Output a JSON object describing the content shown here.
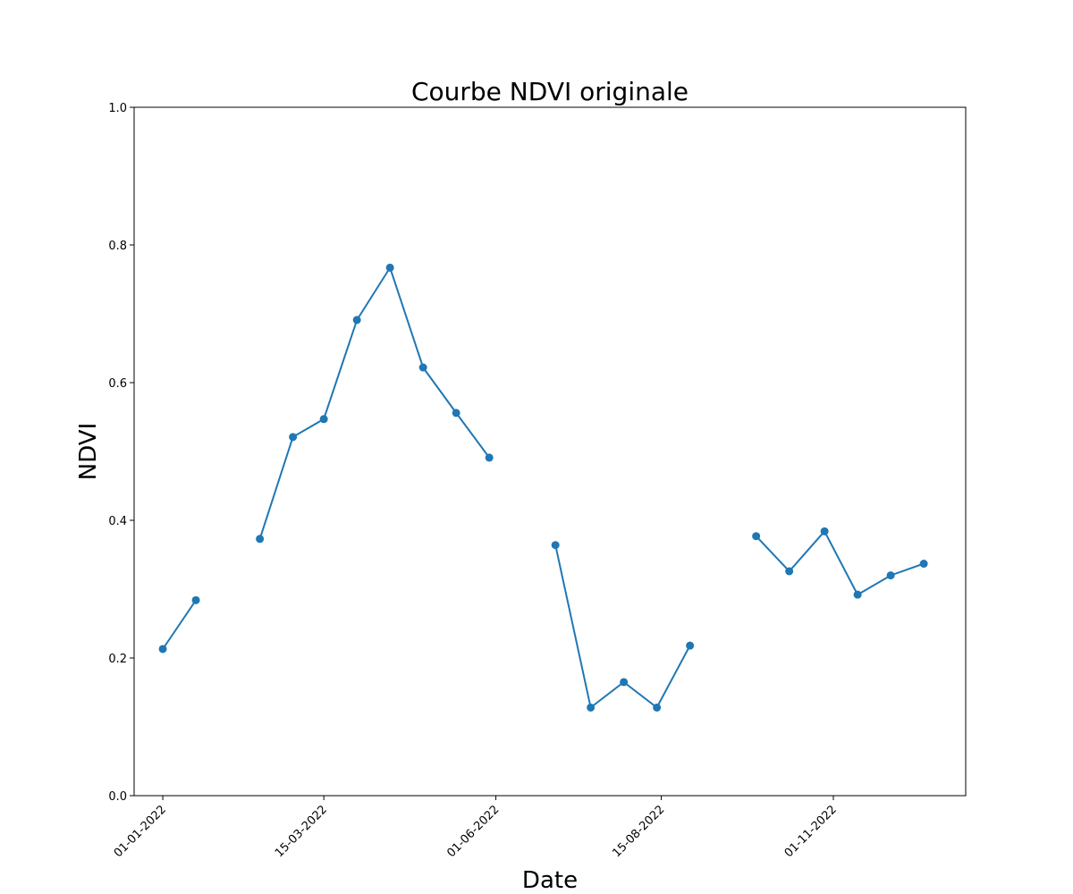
{
  "chart_data": {
    "type": "line",
    "title": "Courbe NDVI originale",
    "xlabel": "Date",
    "ylabel": "NDVI",
    "ylim": [
      0,
      1
    ],
    "yticks": [
      0.0,
      0.2,
      0.4,
      0.6,
      0.8,
      1.0
    ],
    "ytick_labels": [
      "0.0",
      "0.2",
      "0.4",
      "0.6",
      "0.8",
      "1.0"
    ],
    "xlim": [
      "2021-12-19",
      "2022-12-31"
    ],
    "xticks": [
      "2022-01-01",
      "2022-03-15",
      "2022-06-01",
      "2022-08-15",
      "2022-11-01"
    ],
    "xtick_labels": [
      "01-01-2022",
      "15-03-2022",
      "01-06-2022",
      "15-08-2022",
      "01-11-2022"
    ],
    "grid": false,
    "legend": "none",
    "colors": {
      "series": "#1f77b4"
    },
    "series": [
      {
        "segments": [
          {
            "x": [
              "2022-01-01",
              "2022-01-16"
            ],
            "y": [
              0.213,
              0.284
            ]
          },
          {
            "x": [
              "2022-02-14",
              "2022-03-01",
              "2022-03-15",
              "2022-03-30",
              "2022-04-14",
              "2022-04-29",
              "2022-05-14",
              "2022-05-29"
            ],
            "y": [
              0.373,
              0.521,
              0.547,
              0.691,
              0.767,
              0.622,
              0.556,
              0.491
            ]
          },
          {
            "x": [
              "2022-06-28",
              "2022-07-14",
              "2022-07-29",
              "2022-08-13",
              "2022-08-28"
            ],
            "y": [
              0.364,
              0.128,
              0.165,
              0.128,
              0.218
            ]
          },
          {
            "x": [
              "2022-09-27",
              "2022-10-12",
              "2022-10-28",
              "2022-11-12",
              "2022-11-27",
              "2022-12-12"
            ],
            "y": [
              0.377,
              0.326,
              0.384,
              0.292,
              0.32,
              0.337
            ]
          }
        ]
      }
    ]
  }
}
